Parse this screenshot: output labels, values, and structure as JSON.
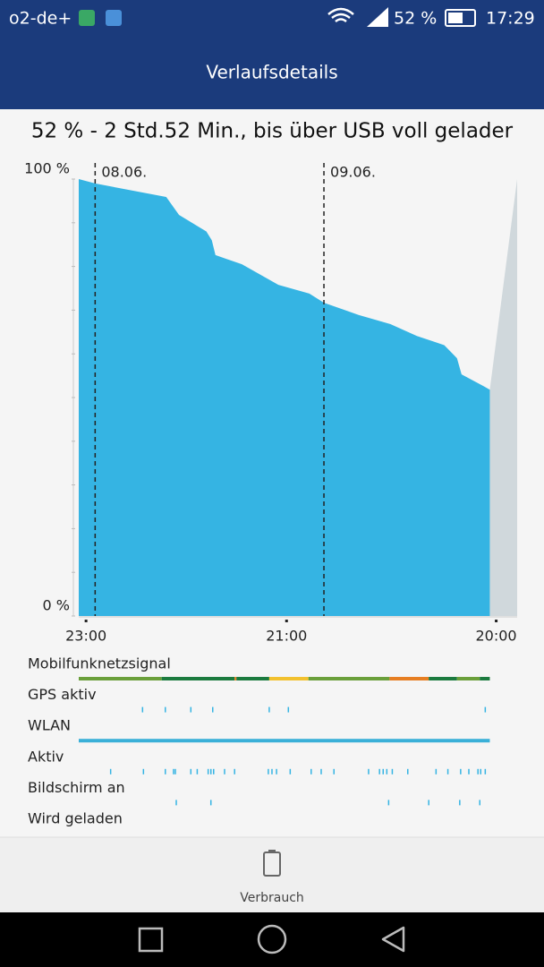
{
  "status_bar": {
    "carrier": "o2-de+",
    "battery": "52 %",
    "time": "17:29"
  },
  "app_bar": {
    "title": "Verlaufsdetails"
  },
  "chart_data": {
    "type": "area",
    "title": "52 % - 2 Std.52 Min., bis über USB voll gelader",
    "x": [
      -0.8,
      1,
      8.8,
      10.2,
      13.2,
      13.8,
      14.2,
      17.1,
      21.1,
      24.5,
      26.1,
      29.9,
      33.4,
      36.3,
      39.3,
      40.7,
      41.2,
      43.7,
      44.3
    ],
    "values": [
      100,
      99,
      95.9,
      91.8,
      88,
      86,
      82.6,
      80.5,
      75.8,
      73.8,
      71.7,
      68.9,
      66.8,
      64.1,
      62,
      59,
      55.3,
      52.5,
      51.8
    ],
    "color": "#35b4e3",
    "forecast": {
      "x": [
        44.3,
        47.3
      ],
      "values": [
        51.8,
        100
      ],
      "color": "#d0d8dc"
    },
    "xlim": [
      -0.8,
      47.3
    ],
    "xticks": [
      {
        "value": 0,
        "label": "23:00"
      },
      {
        "value": 22,
        "label": "21:00"
      },
      {
        "value": 45,
        "label": "20:00"
      }
    ],
    "date_markers": [
      {
        "value": 1,
        "label": "08.06."
      },
      {
        "value": 26.1,
        "label": "09.06."
      }
    ],
    "ylim": [
      0,
      100
    ],
    "yticks": [
      {
        "value": 0,
        "label": "0 %"
      },
      {
        "value": 100,
        "label": "100 %"
      }
    ],
    "minor_yticks": [
      10,
      20,
      30,
      40,
      50,
      60,
      70,
      80,
      90
    ],
    "timeline": [
      {
        "label": "Mobilfunknetzsignal",
        "segments": [
          {
            "start": -0.8,
            "end": 8.3,
            "color": "#6a9f3a"
          },
          {
            "start": 8.3,
            "end": 16.3,
            "color": "#1b7a3e"
          },
          {
            "start": 16.3,
            "end": 16.5,
            "color": "#e67e22"
          },
          {
            "start": 16.5,
            "end": 20.1,
            "color": "#1b7a3e"
          },
          {
            "start": 20.1,
            "end": 24.4,
            "color": "#f2c12e"
          },
          {
            "start": 24.4,
            "end": 33.3,
            "color": "#6a9f3a"
          },
          {
            "start": 33.3,
            "end": 37.6,
            "color": "#e67e22"
          },
          {
            "start": 37.6,
            "end": 40.7,
            "color": "#1b7a3e"
          },
          {
            "start": 40.7,
            "end": 43.2,
            "color": "#6a9f3a"
          },
          {
            "start": 43.2,
            "end": 44.3,
            "color": "#1b7a3e"
          }
        ]
      },
      {
        "label": "GPS aktiv",
        "color": "#35b4e3",
        "events": [
          6.2,
          8.7,
          11.5,
          13.9,
          20.1,
          22.2,
          43.8
        ]
      },
      {
        "label": "WLAN",
        "segments": [
          {
            "start": -0.8,
            "end": 44.3,
            "color": "#3ab0d8"
          }
        ]
      },
      {
        "label": "Aktiv",
        "color": "#35b4e3",
        "events": [
          2.7,
          6.3,
          8.7,
          9.6,
          9.8,
          11.5,
          12.2,
          13.4,
          13.7,
          14.0,
          15.2,
          16.3,
          20.0,
          20.4,
          20.9,
          22.4,
          24.7,
          25.8,
          27.2,
          31.0,
          32.2,
          32.6,
          33.0,
          33.6,
          35.3,
          38.4,
          39.7,
          41.1,
          42.0,
          43.0,
          43.3,
          43.8
        ]
      },
      {
        "label": "Bildschirm an",
        "color": "#35b4e3",
        "events": [
          9.9,
          13.7,
          33.2,
          37.6,
          41.0,
          43.2
        ]
      },
      {
        "label": "Wird geladen"
      }
    ]
  },
  "bottom_nav": {
    "label": "Verbrauch"
  }
}
